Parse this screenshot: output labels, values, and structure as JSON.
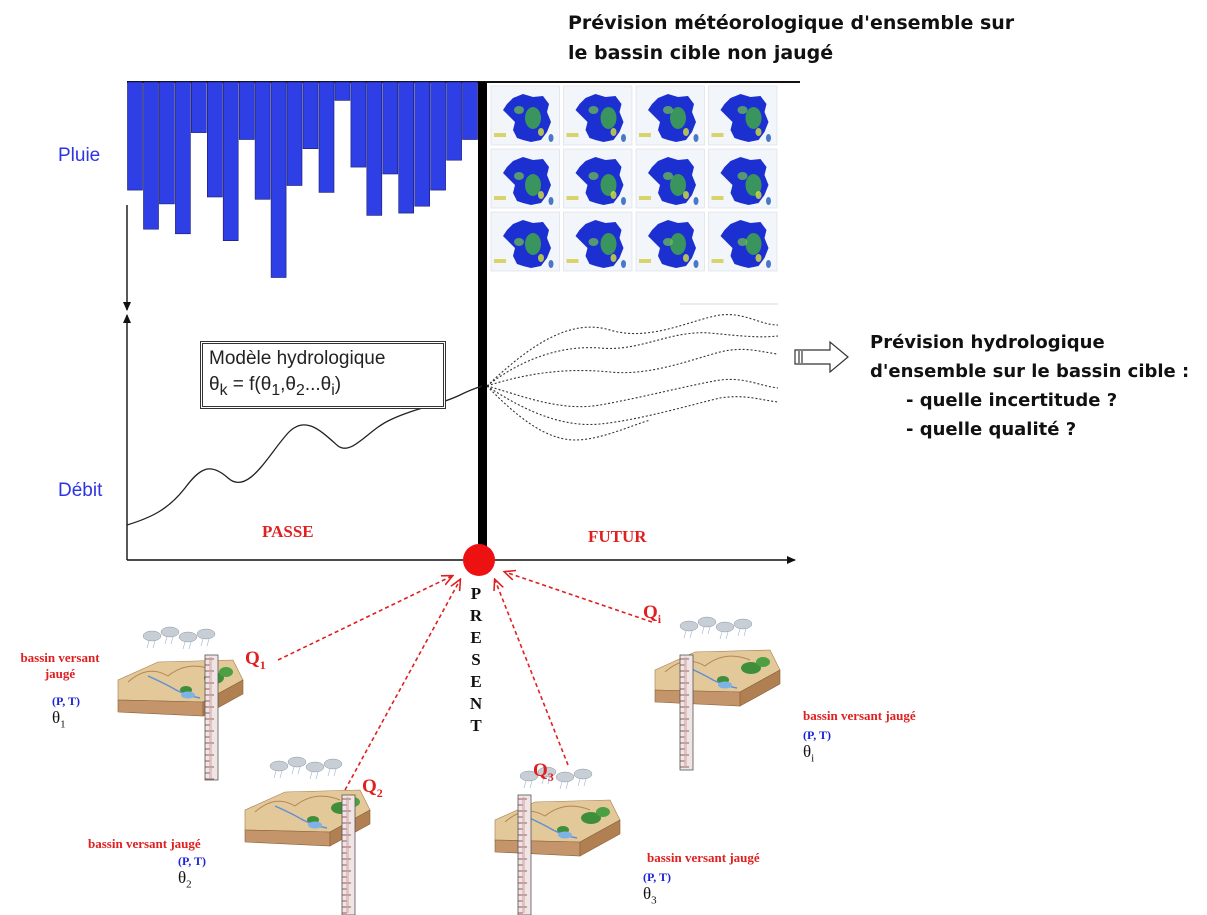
{
  "header": {
    "line1": "Prévision météorologique d'ensemble sur",
    "line2": "le bassin cible non jaugé"
  },
  "axis_labels": {
    "rain": "Pluie",
    "flow": "Débit"
  },
  "model_box": {
    "line1": "Modèle hydrologique",
    "theta": "θ",
    "k": "k",
    "eq_pre": " = f(θ",
    "s1": "1",
    "comma": ",θ",
    "s2": "2",
    "dots": "...θ",
    "si": "i",
    "close": ")"
  },
  "period": {
    "past": "PASSE",
    "future": "FUTUR",
    "present_letters": [
      "P",
      "R",
      "E",
      "S",
      "E",
      "N",
      "T"
    ]
  },
  "right_panel": {
    "line1": "Prévision hydrologique",
    "line2": "d'ensemble sur le bassin cible :",
    "bullet1": "- quelle incertitude ?",
    "bullet2": "- quelle qualité ?"
  },
  "basins": [
    {
      "q": "Q",
      "q_sub": "1",
      "label": "bassin versant",
      "label2": "jaugé",
      "pt": "(P, T)",
      "theta": "θ",
      "theta_sub": "1"
    },
    {
      "q": "Q",
      "q_sub": "2",
      "label": "bassin versant jaugé",
      "pt": "(P, T)",
      "theta": "θ",
      "theta_sub": "2"
    },
    {
      "q": "Q",
      "q_sub": "3",
      "label": "bassin versant jaugé",
      "pt": "(P, T)",
      "theta": "θ",
      "theta_sub": "3"
    },
    {
      "q": "Q",
      "q_sub": "i",
      "label": "bassin versant jaugé",
      "pt": "(P, T)",
      "theta": "θ",
      "theta_sub": "i"
    }
  ],
  "rain_bars": [
    0.47,
    0.64,
    0.53,
    0.66,
    0.22,
    0.5,
    0.69,
    0.25,
    0.51,
    0.85,
    0.45,
    0.29,
    0.48,
    0.08,
    0.37,
    0.58,
    0.4,
    0.57,
    0.54,
    0.47,
    0.34,
    0.25
  ],
  "colors": {
    "rain": "#2f3fe6",
    "label_blue": "#2d34e3",
    "red": "#e02020",
    "present_dot": "#ee1111",
    "map_sea": "#f2f5fa",
    "france_blue": "#1c2fd0",
    "france_green": "#3fa64a"
  }
}
